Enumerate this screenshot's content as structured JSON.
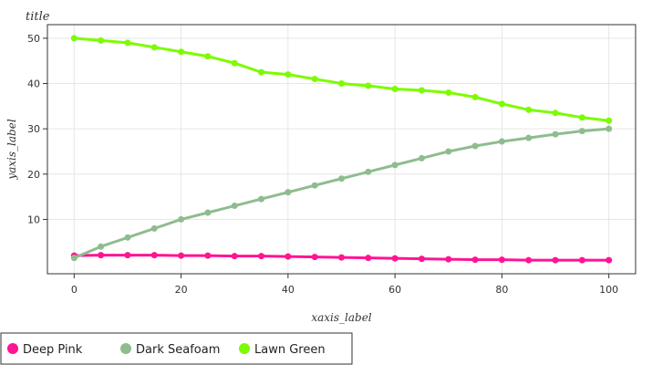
{
  "chart_data": {
    "type": "line",
    "title": "title",
    "xlabel": "xaxis_label",
    "ylabel": "yaxis_label",
    "xlim": [
      -5,
      105
    ],
    "ylim": [
      -2,
      53
    ],
    "xticks": [
      0,
      20,
      40,
      60,
      80,
      100
    ],
    "yticks": [
      10,
      20,
      30,
      40,
      50
    ],
    "grid": true,
    "legend_position": "bottom",
    "series": [
      {
        "name": "Deep Pink",
        "color": "#ff1493",
        "x": [
          0,
          5,
          10,
          15,
          20,
          25,
          30,
          35,
          40,
          45,
          50,
          55,
          60,
          65,
          70,
          75,
          80,
          85,
          90,
          95,
          100
        ],
        "y": [
          2,
          2.1,
          2.1,
          2.1,
          2,
          2,
          1.9,
          1.9,
          1.8,
          1.7,
          1.6,
          1.5,
          1.4,
          1.3,
          1.2,
          1.1,
          1.1,
          1.0,
          1.0,
          1.0,
          1.0
        ]
      },
      {
        "name": "Dark Seafoam",
        "color": "#8fbc8f",
        "x": [
          0,
          5,
          10,
          15,
          20,
          25,
          30,
          35,
          40,
          45,
          50,
          55,
          60,
          65,
          70,
          75,
          80,
          85,
          90,
          95,
          100
        ],
        "y": [
          1.5,
          4,
          6,
          8,
          10,
          11.5,
          13,
          14.5,
          16,
          17.5,
          19,
          20.5,
          22,
          23.5,
          25,
          26.2,
          27.2,
          28,
          28.8,
          29.5,
          30
        ]
      },
      {
        "name": "Lawn Green",
        "color": "#7cfc00",
        "x": [
          0,
          5,
          10,
          15,
          20,
          25,
          30,
          35,
          40,
          45,
          50,
          55,
          60,
          65,
          70,
          75,
          80,
          85,
          90,
          95,
          100
        ],
        "y": [
          50,
          49.5,
          49,
          48,
          47,
          46,
          44.5,
          42.5,
          42,
          41,
          40,
          39.5,
          38.8,
          38.5,
          38,
          37,
          35.5,
          34.2,
          33.5,
          32.5,
          31.8
        ]
      }
    ]
  }
}
